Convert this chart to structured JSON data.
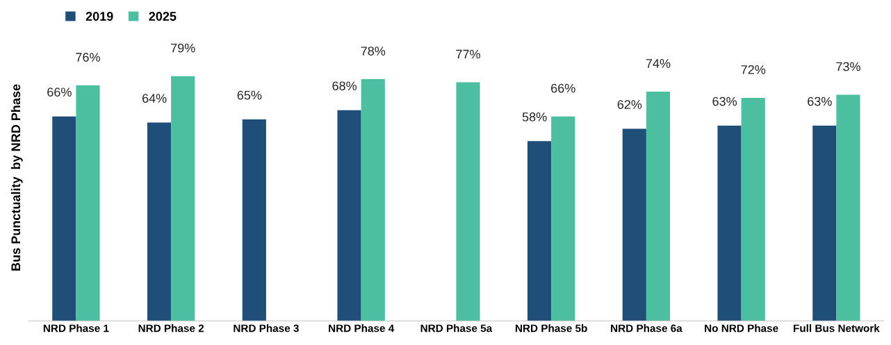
{
  "chart_data": {
    "type": "bar",
    "ylabel": "Bus Punctuality  by NRD Phase",
    "categories": [
      "NRD Phase 1",
      "NRD Phase 2",
      "NRD Phase 3",
      "NRD Phase 4",
      "NRD Phase 5a",
      "NRD Phase 5b",
      "NRD Phase 6a",
      "No NRD Phase",
      "Full Bus Network"
    ],
    "series": [
      {
        "name": "2019",
        "color": "#1f4e79",
        "values": [
          66,
          64,
          65,
          68,
          null,
          58,
          62,
          63,
          63
        ],
        "value_labels": [
          "66%",
          "64%",
          "65%",
          "68%",
          null,
          "58%",
          "62%",
          "63%",
          "63%"
        ]
      },
      {
        "name": "2025",
        "color": "#4bbfa0",
        "values": [
          76,
          79,
          null,
          78,
          77,
          66,
          74,
          72,
          73
        ],
        "value_labels": [
          "76%",
          "79%",
          null,
          "78%",
          "77%",
          "66%",
          "74%",
          "72%",
          "73%"
        ]
      }
    ],
    "legend": "top left",
    "tick_labels": "x"
  }
}
